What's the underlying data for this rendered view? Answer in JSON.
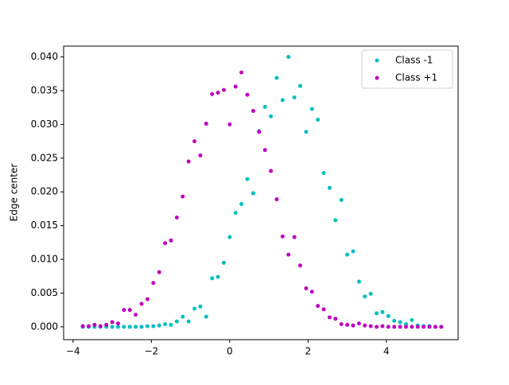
{
  "chart_data": {
    "type": "scatter",
    "y_label": "Edge center",
    "x": [
      -3.75,
      -3.6,
      -3.45,
      -3.3,
      -3.15,
      -3.0,
      -2.85,
      -2.7,
      -2.55,
      -2.4,
      -2.25,
      -2.1,
      -1.95,
      -1.8,
      -1.65,
      -1.5,
      -1.35,
      -1.2,
      -1.05,
      -0.9,
      -0.75,
      -0.6,
      -0.45,
      -0.3,
      -0.15,
      0,
      0.15,
      0.3,
      0.45,
      0.6,
      0.75,
      0.9,
      1.05,
      1.2,
      1.35,
      1.5,
      1.65,
      1.8,
      1.95,
      2.1,
      2.25,
      2.4,
      2.55,
      2.7,
      2.85,
      3.0,
      3.15,
      3.3,
      3.45,
      3.6,
      3.75,
      3.9,
      4.05,
      4.2,
      4.35,
      4.5,
      4.65,
      4.8,
      4.95,
      5.1,
      5.25,
      5.4
    ],
    "series": [
      {
        "name": "Class -1",
        "color": "#00bfbf",
        "values": [
          0,
          0,
          0,
          0,
          0,
          0,
          0,
          0,
          0,
          0,
          0,
          0.0001,
          0.0001,
          0.0002,
          0.0004,
          0.0003,
          0.0008,
          0.0015,
          0.0008,
          0.0027,
          0.003,
          0.0015,
          0.0072,
          0.0074,
          0.0095,
          0.0133,
          0.0169,
          0.0182,
          0.0219,
          0.0198,
          0.029,
          0.0326,
          0.0312,
          0.0369,
          0.0336,
          0.04,
          0.034,
          0.0357,
          0.0289,
          0.0323,
          0.0307,
          0.0228,
          0.0206,
          0.0158,
          0.0188,
          0.0107,
          0.0112,
          0.0067,
          0.0045,
          0.0049,
          0.002,
          0.0022,
          0.0016,
          0.0009,
          0.0007,
          0.0004,
          0.001,
          0.0002,
          0.0001,
          0.0001,
          0,
          0
        ]
      },
      {
        "name": "Class +1",
        "color": "#bf00bf",
        "values": [
          0.0001,
          0.0001,
          0.0003,
          0.0001,
          0.0003,
          0.0007,
          0.0005,
          0.0025,
          0.0025,
          0.0018,
          0.0034,
          0.0041,
          0.0065,
          0.0081,
          0.0124,
          0.0128,
          0.0162,
          0.0193,
          0.0245,
          0.0275,
          0.0254,
          0.0301,
          0.0345,
          0.0347,
          0.0351,
          0.03,
          0.0356,
          0.0377,
          0.0344,
          0.032,
          0.0289,
          0.0262,
          0.0231,
          0.0189,
          0.0134,
          0.0107,
          0.0133,
          0.0091,
          0.0057,
          0.0052,
          0.0031,
          0.0026,
          0.0014,
          0.0012,
          0.0004,
          0.0003,
          0.0002,
          0.0005,
          0.0002,
          0.0001,
          0,
          0.0001,
          0,
          0,
          0,
          0,
          0,
          0,
          0,
          0,
          0,
          0
        ]
      }
    ],
    "xlim": [
      -4.24,
      5.83
    ],
    "ylim": [
      -0.0019,
      0.0416
    ],
    "xticks": [
      {
        "value": -4,
        "label": "−4"
      },
      {
        "value": -2,
        "label": "−2"
      },
      0,
      2,
      4
    ],
    "yticks": [
      {
        "value": 0,
        "label": "0.000"
      },
      0.005,
      {
        "value": 0.01,
        "label": "0.010"
      },
      0.015,
      {
        "value": 0.02,
        "label": "0.020"
      },
      0.025,
      {
        "value": 0.03,
        "label": "0.030"
      },
      0.035,
      {
        "value": 0.04,
        "label": "0.040"
      }
    ],
    "legend": "upper right"
  }
}
